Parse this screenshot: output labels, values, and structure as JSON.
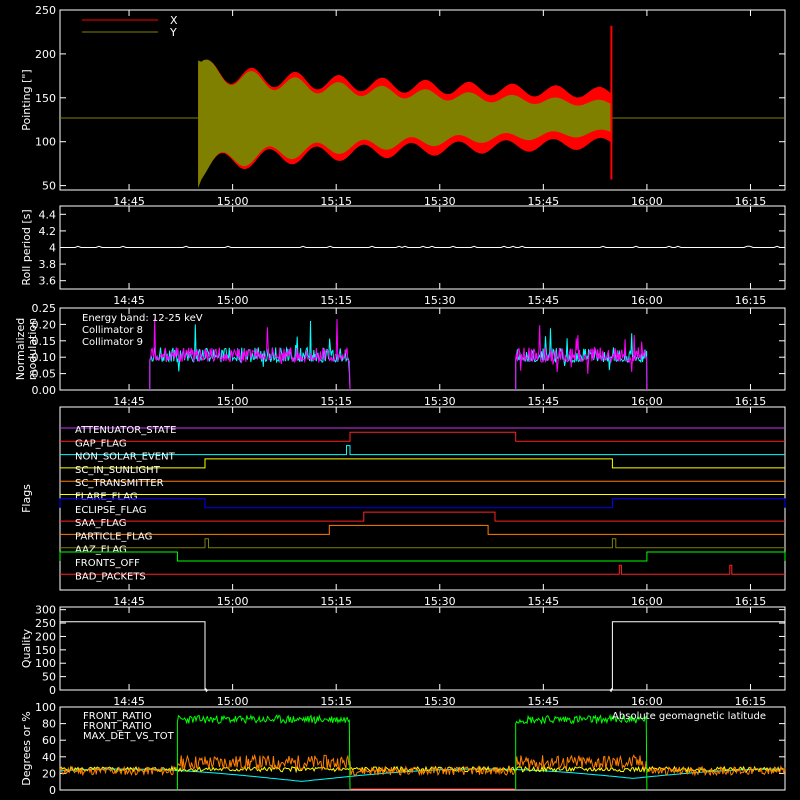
{
  "chart_data": [
    {
      "type": "line",
      "ylabel": "Pointing [\"]",
      "ylim": [
        45,
        250
      ],
      "yticks": [
        50,
        100,
        150,
        200,
        250
      ],
      "xlim": [
        "14:35",
        "16:20"
      ],
      "xticks": [
        "14:45",
        "15:00",
        "15:15",
        "15:30",
        "15:45",
        "16:00",
        "16:15"
      ],
      "legend": {
        "placement": "top-left"
      },
      "series": [
        {
          "name": "X",
          "color": "#ff0000",
          "baseline": 127,
          "start": "14:55",
          "end": "15:55",
          "amplitude_start": 75,
          "amplitude_end": 35
        },
        {
          "name": "Y",
          "color": "#808000",
          "baseline": 127,
          "start": "14:55",
          "end": "15:55",
          "amplitude_start": 80,
          "amplitude_end": 20
        }
      ]
    },
    {
      "type": "line",
      "ylabel": "Roll period [s]",
      "ylim": [
        3.5,
        4.5
      ],
      "yticks": [
        3.6,
        3.8,
        4.0,
        4.2,
        4.4
      ],
      "xticks": [
        "14:45",
        "15:00",
        "15:15",
        "15:30",
        "15:45",
        "16:00",
        "16:15"
      ],
      "series": [
        {
          "color": "#ffffff",
          "value": 4.0
        }
      ]
    },
    {
      "type": "line",
      "ylabel": "Normalized modulation",
      "ylim": [
        0,
        0.25
      ],
      "yticks": [
        "0.00",
        "0.05",
        "0.10",
        "0.15",
        "0.20",
        "0.25"
      ],
      "xticks": [
        "14:45",
        "15:00",
        "15:15",
        "15:30",
        "15:45",
        "16:00",
        "16:15"
      ],
      "annotation": "Energy band: 12-25 keV",
      "series": [
        {
          "name": "Collimator 8",
          "color": "#00ffff",
          "intervals": [
            [
              "14:48",
              "15:17"
            ],
            [
              "15:41",
              "16:00"
            ]
          ],
          "level": 0.1
        },
        {
          "name": "Collimator 9",
          "color": "#ff00ff",
          "intervals": [
            [
              "14:48",
              "15:17"
            ],
            [
              "15:41",
              "16:00"
            ]
          ],
          "level": 0.1
        }
      ]
    },
    {
      "type": "line",
      "ylabel": "Flags",
      "xticks": [
        "14:45",
        "15:00",
        "15:15",
        "15:30",
        "15:45",
        "16:00",
        "16:15"
      ],
      "flags": [
        {
          "name": "ATTENUATOR_STATE",
          "color": "#cc33ff",
          "segments": []
        },
        {
          "name": "GAP_FLAG",
          "color": "#ff2222",
          "segments": [
            [
              "15:17",
              "15:41"
            ]
          ]
        },
        {
          "name": "NON_SOLAR_EVENT",
          "color": "#00ffff",
          "segments": [
            [
              "15:16.5",
              "15:17"
            ]
          ]
        },
        {
          "name": "SC_IN_SUNLIGHT",
          "color": "#ffff00",
          "segments": [
            [
              "14:56",
              "15:55"
            ]
          ]
        },
        {
          "name": "SC_TRANSMITTER",
          "color": "#ff7f00",
          "segments": []
        },
        {
          "name": "FLARE_FLAG",
          "color": "#ffff00",
          "segments": []
        },
        {
          "name": "ECLIPSE_FLAG",
          "color": "#0000ff",
          "segments": [
            [
              "14:35",
              "14:56"
            ],
            [
              "15:55",
              "16:20"
            ]
          ]
        },
        {
          "name": "SAA_FLAG",
          "color": "#ff2222",
          "segments": [
            [
              "15:19",
              "15:38"
            ]
          ]
        },
        {
          "name": "PARTICLE_FLAG",
          "color": "#ff7f00",
          "segments": [
            [
              "15:14",
              "15:37"
            ]
          ]
        },
        {
          "name": "AAZ_FLAG",
          "color": "#808000",
          "segments": [
            [
              "14:56",
              "14:56.5"
            ],
            [
              "15:55",
              "15:55.5"
            ]
          ]
        },
        {
          "name": "FRONTS_OFF",
          "color": "#00ff00",
          "segments": [
            [
              "14:35",
              "14:52"
            ],
            [
              "16:00",
              "16:20"
            ]
          ]
        },
        {
          "name": "BAD_PACKETS",
          "color": "#ff2222",
          "segments": [
            [
              "15:56",
              "15:56.3"
            ],
            [
              "16:12",
              "16:12.3"
            ]
          ]
        }
      ]
    },
    {
      "type": "line",
      "ylabel": "Quality",
      "ylim": [
        0,
        310
      ],
      "yticks": [
        0,
        50,
        100,
        150,
        200,
        250,
        300
      ],
      "xticks": [
        "14:45",
        "15:00",
        "15:15",
        "15:30",
        "15:45",
        "16:00",
        "16:15"
      ],
      "series": [
        {
          "color": "#ffffff",
          "segments": [
            [
              "14:35",
              "14:56",
              255
            ],
            [
              "14:56",
              "15:55",
              0
            ],
            [
              "15:55",
              "16:20",
              255
            ]
          ]
        }
      ]
    },
    {
      "type": "line",
      "ylabel": "Degrees or %",
      "ylim": [
        0,
        100
      ],
      "yticks": [
        0,
        20,
        40,
        60,
        80,
        100
      ],
      "series": [
        {
          "name": "FRONT_RATIO",
          "color": "#ffff00",
          "level": 28
        },
        {
          "name": "FRONT_RATIO",
          "color": "#00ff00",
          "level": 84,
          "intervals": [
            [
              "14:52",
              "15:17"
            ],
            [
              "15:41",
              "16:00"
            ]
          ]
        },
        {
          "name": "MAX_DET_VS_TOT",
          "color": "#ff7f00",
          "level": 30
        },
        {
          "name": "Absolute geomagnetic latitude",
          "color": "#00ffff",
          "level": 20
        }
      ]
    }
  ]
}
